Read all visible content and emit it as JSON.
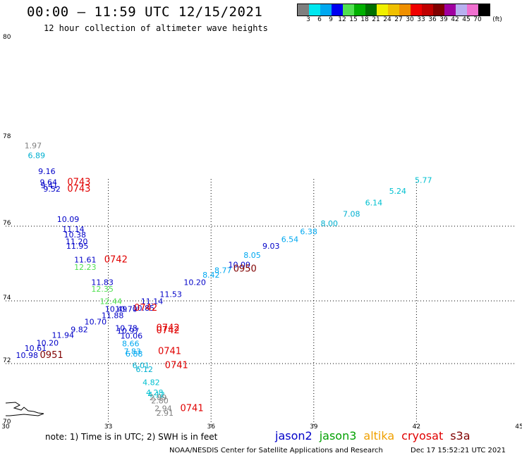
{
  "title": "00:00 – 11:59 UTC 12/15/2021",
  "subtitle": "12 hour collection of altimeter wave heights",
  "colorbar": {
    "unit_label": "(ft)",
    "colors": [
      "#7f7f7f",
      "#00e8f0",
      "#00a8f0",
      "#0000f0",
      "#50e050",
      "#00b000",
      "#007000",
      "#f0f000",
      "#f0c000",
      "#f09000",
      "#f00000",
      "#c00000",
      "#800000",
      "#a000a0",
      "#b8b0f0",
      "#f070d0",
      "#000000"
    ],
    "labels": [
      "3",
      "6",
      "9",
      "12",
      "15",
      "18",
      "21",
      "24",
      "27",
      "30",
      "33",
      "36",
      "39",
      "42",
      "45",
      "70"
    ]
  },
  "axes": {
    "x_ticks": [
      "30",
      "33",
      "36",
      "39",
      "42",
      "45"
    ],
    "y_ticks": [
      "70",
      "72",
      "74",
      "76",
      "78",
      "80"
    ]
  },
  "note": "note: 1) Time is in UTC; 2) SWH is in feet",
  "legend": [
    {
      "name": "jason2",
      "color": "#0000c8"
    },
    {
      "name": "jason3",
      "color": "#00a000"
    },
    {
      "name": "altika",
      "color": "#f0a000"
    },
    {
      "name": "cryosat",
      "color": "#e00000"
    },
    {
      "name": "s3a",
      "color": "#800000"
    }
  ],
  "credit": {
    "left": "NOAA/NESDIS Center for Satellite Applications and Research",
    "right": "Dec 17 15:52:21 UTC 2021"
  },
  "observations": [
    {
      "lon": 30.55,
      "lat": 77.8,
      "swh": "1.97",
      "color": "#808080"
    },
    {
      "lon": 30.65,
      "lat": 77.57,
      "swh": "6.89",
      "color": "#00b0d0"
    },
    {
      "lon": 30.95,
      "lat": 77.2,
      "swh": "9.16",
      "color": "#0000c8"
    },
    {
      "lon": 31.0,
      "lat": 76.95,
      "swh": "9.64",
      "color": "#0000c8"
    },
    {
      "lon": 31.02,
      "lat": 76.88,
      "swh": "9.41",
      "color": "#0000c8"
    },
    {
      "lon": 31.1,
      "lat": 76.8,
      "swh": "9.52",
      "color": "#0000c8"
    },
    {
      "lon": 31.5,
      "lat": 76.1,
      "swh": "10.09",
      "color": "#0000c8"
    },
    {
      "lon": 31.65,
      "lat": 75.85,
      "swh": "11.14",
      "color": "#0000c8"
    },
    {
      "lon": 31.7,
      "lat": 75.7,
      "swh": "10.38",
      "color": "#0000c8"
    },
    {
      "lon": 31.75,
      "lat": 75.52,
      "swh": "11.20",
      "color": "#0000c8"
    },
    {
      "lon": 31.77,
      "lat": 75.4,
      "swh": "11.95",
      "color": "#0000c8"
    },
    {
      "lon": 32.0,
      "lat": 75.03,
      "swh": "11.61",
      "color": "#0000c8"
    },
    {
      "lon": 32.0,
      "lat": 74.83,
      "swh": "12.23",
      "color": "#50e050"
    },
    {
      "lon": 32.5,
      "lat": 74.42,
      "swh": "11.83",
      "color": "#0000c8"
    },
    {
      "lon": 32.5,
      "lat": 74.25,
      "swh": "12.35",
      "color": "#50e050"
    },
    {
      "lon": 32.75,
      "lat": 73.9,
      "swh": "12.44",
      "color": "#50e050"
    },
    {
      "lon": 32.9,
      "lat": 73.65,
      "swh": "10.49",
      "color": "#0000c8"
    },
    {
      "lon": 33.2,
      "lat": 73.65,
      "swh": "10.70",
      "color": "#0000c8"
    },
    {
      "lon": 32.8,
      "lat": 73.45,
      "swh": "11.88",
      "color": "#0000c8"
    },
    {
      "lon": 32.3,
      "lat": 73.25,
      "swh": "10.70",
      "color": "#0000c8"
    },
    {
      "lon": 31.9,
      "lat": 73.0,
      "swh": "9.82",
      "color": "#0000c8"
    },
    {
      "lon": 31.35,
      "lat": 72.82,
      "swh": "11.94",
      "color": "#0000c8"
    },
    {
      "lon": 30.9,
      "lat": 72.57,
      "swh": "10.20",
      "color": "#0000c8"
    },
    {
      "lon": 30.55,
      "lat": 72.4,
      "swh": "10.61",
      "color": "#0000c8"
    },
    {
      "lon": 30.3,
      "lat": 72.18,
      "swh": "10.98",
      "color": "#0000c8"
    },
    {
      "lon": 33.2,
      "lat": 73.05,
      "swh": "10.78",
      "color": "#0000c8"
    },
    {
      "lon": 33.25,
      "lat": 72.95,
      "swh": "10.97",
      "color": "#0000c8"
    },
    {
      "lon": 33.35,
      "lat": 72.8,
      "swh": "10.06",
      "color": "#0000c8"
    },
    {
      "lon": 33.4,
      "lat": 72.55,
      "swh": "8.66",
      "color": "#00a8f0"
    },
    {
      "lon": 33.45,
      "lat": 72.3,
      "swh": "7.83",
      "color": "#00a8f0"
    },
    {
      "lon": 33.5,
      "lat": 72.22,
      "swh": "6.88",
      "color": "#00a8f0"
    },
    {
      "lon": 33.7,
      "lat": 71.85,
      "swh": "6.01",
      "color": "#00b0d0"
    },
    {
      "lon": 33.8,
      "lat": 71.72,
      "swh": "6.12",
      "color": "#00b0d0"
    },
    {
      "lon": 34.0,
      "lat": 71.3,
      "swh": "4.82",
      "color": "#00c0d0"
    },
    {
      "lon": 34.1,
      "lat": 70.97,
      "swh": "4.28",
      "color": "#00c0d0"
    },
    {
      "lon": 34.15,
      "lat": 70.9,
      "swh": "4.12",
      "color": "#00c0d0"
    },
    {
      "lon": 34.2,
      "lat": 70.8,
      "swh": "2.89",
      "color": "#808080"
    },
    {
      "lon": 34.25,
      "lat": 70.7,
      "swh": "2.80",
      "color": "#808080"
    },
    {
      "lon": 34.35,
      "lat": 70.45,
      "swh": "2.94",
      "color": "#808080"
    },
    {
      "lon": 34.4,
      "lat": 70.3,
      "swh": "2.91",
      "color": "#808080"
    },
    {
      "lon": 33.7,
      "lat": 73.68,
      "swh": "10.85",
      "color": "#0000c8"
    },
    {
      "lon": 33.95,
      "lat": 73.9,
      "swh": "11.14",
      "color": "#0000c8"
    },
    {
      "lon": 34.5,
      "lat": 74.1,
      "swh": "11.53",
      "color": "#0000c8"
    },
    {
      "lon": 35.2,
      "lat": 74.42,
      "swh": "10.20",
      "color": "#0000c8"
    },
    {
      "lon": 35.75,
      "lat": 74.62,
      "swh": "8.42",
      "color": "#00a8f0"
    },
    {
      "lon": 36.1,
      "lat": 74.75,
      "swh": "8.77",
      "color": "#00a8f0"
    },
    {
      "lon": 36.5,
      "lat": 74.9,
      "swh": "10.09",
      "color": "#0000c8"
    },
    {
      "lon": 36.95,
      "lat": 75.15,
      "swh": "8.05",
      "color": "#00a8f0"
    },
    {
      "lon": 37.5,
      "lat": 75.4,
      "swh": "9.03",
      "color": "#0000c8"
    },
    {
      "lon": 38.05,
      "lat": 75.58,
      "swh": "6.54",
      "color": "#00a8f0"
    },
    {
      "lon": 38.6,
      "lat": 75.78,
      "swh": "6.38",
      "color": "#00a8f0"
    },
    {
      "lon": 39.2,
      "lat": 76.0,
      "swh": "8.00",
      "color": "#00b0d0"
    },
    {
      "lon": 39.85,
      "lat": 76.22,
      "swh": "7.08",
      "color": "#00b0d0"
    },
    {
      "lon": 40.5,
      "lat": 76.48,
      "swh": "6.14",
      "color": "#00c0d0"
    },
    {
      "lon": 41.2,
      "lat": 76.75,
      "swh": "5.24",
      "color": "#00c0d0"
    },
    {
      "lon": 41.95,
      "lat": 77.0,
      "swh": "5.77",
      "color": "#00c0d0"
    }
  ],
  "time_labels": [
    {
      "lon": 31.8,
      "lat": 76.95,
      "text": "0743",
      "color": "#e00000"
    },
    {
      "lon": 31.8,
      "lat": 76.8,
      "text": "0743",
      "color": "#e00000"
    },
    {
      "lon": 32.88,
      "lat": 75.03,
      "text": "0742",
      "color": "#e00000"
    },
    {
      "lon": 33.75,
      "lat": 73.68,
      "text": "0742",
      "color": "#e00000"
    },
    {
      "lon": 34.4,
      "lat": 73.05,
      "text": "0742",
      "color": "#e00000"
    },
    {
      "lon": 34.4,
      "lat": 72.97,
      "text": "0742",
      "color": "#e00000"
    },
    {
      "lon": 34.45,
      "lat": 72.3,
      "text": "0741",
      "color": "#e00000"
    },
    {
      "lon": 34.65,
      "lat": 71.85,
      "text": "0741",
      "color": "#e00000"
    },
    {
      "lon": 35.1,
      "lat": 70.45,
      "text": "0741",
      "color": "#e00000"
    },
    {
      "lon": 31.0,
      "lat": 72.18,
      "text": "0951",
      "color": "#800000"
    },
    {
      "lon": 36.65,
      "lat": 74.78,
      "text": "0950",
      "color": "#800000"
    }
  ]
}
